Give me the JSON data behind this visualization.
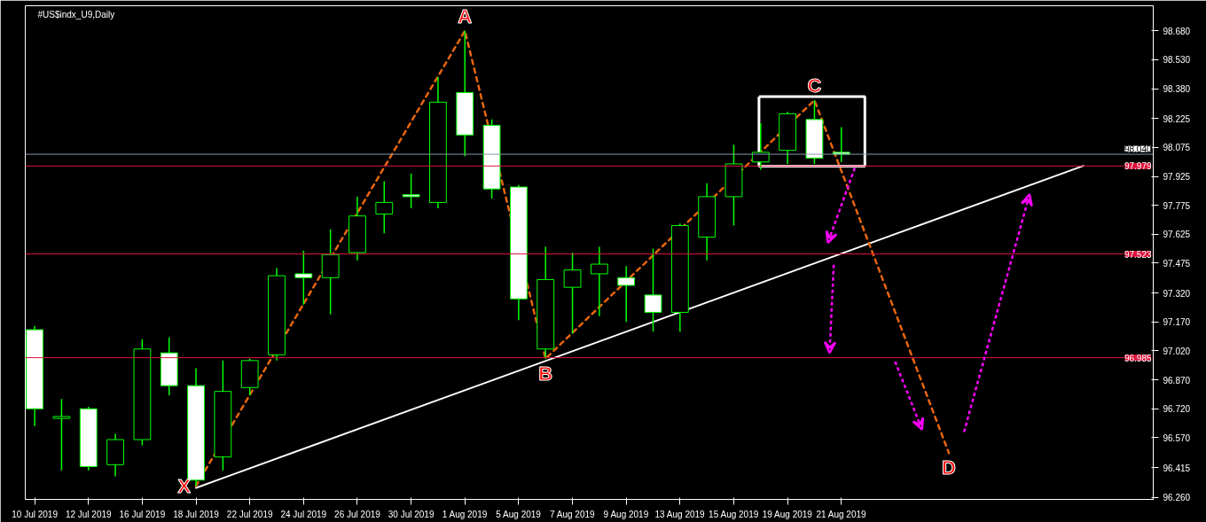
{
  "chart_data": {
    "type": "candlestick",
    "title": "#US$indx_U9,Daily",
    "categories": [
      "10 Jul 2019",
      null,
      "12 Jul 2019",
      null,
      "16 Jul 2019",
      null,
      "18 Jul 2019",
      null,
      "22 Jul 2019",
      null,
      "24 Jul 2019",
      null,
      "26 Jul 2019",
      null,
      "30 Jul 2019",
      null,
      "1 Aug 2019",
      null,
      "5 Aug 2019",
      null,
      "7 Aug 2019",
      null,
      "9 Aug 2019",
      null,
      "13 Aug 2019",
      null,
      "15 Aug 2019",
      null,
      "19 Aug 2019",
      null,
      "21 Aug 2019",
      null,
      null,
      null,
      null,
      null,
      null,
      null,
      null,
      null,
      null
    ],
    "ohlc": [
      [
        97.13,
        97.15,
        96.63,
        96.72
      ],
      [
        96.68,
        96.77,
        96.4,
        96.67
      ],
      [
        96.72,
        96.73,
        96.4,
        96.42
      ],
      [
        96.43,
        96.59,
        96.37,
        96.56
      ],
      [
        96.56,
        97.08,
        96.53,
        97.03
      ],
      [
        97.01,
        97.09,
        96.79,
        96.84
      ],
      [
        96.84,
        96.93,
        96.32,
        96.35
      ],
      [
        96.47,
        96.97,
        96.4,
        96.81
      ],
      [
        96.83,
        96.98,
        96.79,
        96.97
      ],
      [
        97.0,
        97.45,
        96.97,
        97.41
      ],
      [
        97.42,
        97.54,
        97.26,
        97.4
      ],
      [
        97.4,
        97.65,
        97.21,
        97.52
      ],
      [
        97.53,
        97.82,
        97.49,
        97.72
      ],
      [
        97.73,
        97.9,
        97.63,
        97.79
      ],
      [
        97.83,
        97.94,
        97.76,
        97.82
      ],
      [
        97.79,
        98.44,
        97.76,
        98.31
      ],
      [
        98.36,
        98.68,
        98.03,
        98.14
      ],
      [
        98.19,
        98.22,
        97.81,
        97.86
      ],
      [
        97.87,
        97.88,
        97.18,
        97.29
      ],
      [
        97.03,
        97.56,
        96.98,
        97.39
      ],
      [
        97.35,
        97.53,
        97.11,
        97.44
      ],
      [
        97.42,
        97.56,
        97.2,
        97.47
      ],
      [
        97.4,
        97.46,
        97.17,
        97.36
      ],
      [
        97.31,
        97.55,
        97.12,
        97.22
      ],
      [
        97.22,
        97.68,
        97.12,
        97.67
      ],
      [
        97.61,
        97.89,
        97.49,
        97.82
      ],
      [
        97.82,
        98.09,
        97.67,
        97.99
      ],
      [
        98.0,
        98.2,
        97.96,
        98.05
      ],
      [
        98.06,
        98.26,
        97.99,
        98.25
      ],
      [
        98.22,
        98.32,
        97.99,
        98.02
      ],
      [
        98.05,
        98.18,
        98.0,
        98.04
      ],
      null,
      null,
      null,
      null,
      null,
      null,
      null,
      null,
      null,
      null
    ],
    "color": "#00ff00",
    "colors": [
      "#ffffff",
      "#000000",
      "#ffffff",
      "#000000",
      "#000000",
      "#ffffff",
      "#ffffff",
      "#000000",
      "#000000",
      "#000000",
      "#ffffff",
      "#000000",
      "#000000",
      "#000000",
      "#ffffff",
      "#000000",
      "#ffffff",
      "#ffffff",
      "#ffffff",
      "#000000",
      "#000000",
      "#000000",
      "#ffffff",
      "#ffffff",
      "#000000",
      "#000000",
      "#000000",
      "#000000",
      "#000000",
      "#ffffff",
      "#ffffff",
      null,
      null,
      null,
      null,
      null,
      null,
      null,
      null,
      null,
      null
    ],
    "series": [
      {
        "type": "line",
        "color": "#e8650e",
        "line_style": "dashed",
        "values": [
          null,
          null,
          null,
          null,
          null,
          null,
          96.32,
          null,
          null,
          null,
          null,
          null,
          null,
          null,
          null,
          null,
          98.68,
          null,
          null,
          96.98,
          null,
          null,
          null,
          null,
          null,
          null,
          null,
          null,
          null,
          98.32,
          null,
          null,
          null,
          null,
          96.49,
          null,
          null,
          null,
          null,
          null,
          null
        ]
      },
      {
        "type": "line",
        "color": "#ffffff",
        "line_style": "solid",
        "values": [
          null,
          null,
          null,
          null,
          null,
          null,
          96.31,
          null,
          null,
          null,
          null,
          null,
          null,
          null,
          null,
          null,
          null,
          null,
          null,
          null,
          null,
          null,
          null,
          null,
          null,
          null,
          null,
          null,
          null,
          null,
          null,
          null,
          null,
          null,
          null,
          null,
          null,
          null,
          null,
          97.98,
          null
        ]
      }
    ],
    "ylim": [
      96.25,
      98.81
    ],
    "yticks": [
      {
        "value": 98.68,
        "label": "98.680"
      },
      {
        "value": 98.53,
        "label": "98.530"
      },
      {
        "value": 98.38,
        "label": "98.380"
      },
      {
        "value": 98.225,
        "label": "98.225"
      },
      {
        "value": 98.075,
        "label": "98.075"
      },
      {
        "value": 97.925,
        "label": "97.925"
      },
      {
        "value": 97.775,
        "label": "97.775"
      },
      {
        "value": 97.625,
        "label": "97.625"
      },
      {
        "value": 97.475,
        "label": "97.475"
      },
      {
        "value": 97.32,
        "label": "97.320"
      },
      {
        "value": 97.17,
        "label": "97.170"
      },
      {
        "value": 97.02,
        "label": "97.020"
      },
      {
        "value": 96.87,
        "label": "96.870"
      },
      {
        "value": 96.72,
        "label": "96.720"
      },
      {
        "value": 96.57,
        "label": "96.570"
      },
      {
        "value": 96.415,
        "label": "96.415"
      },
      {
        "value": 96.26,
        "label": "96.260"
      }
    ],
    "ref_lines": [
      {
        "axis": "y",
        "value": 98.04,
        "label": "98.040",
        "color": "#8899aa"
      },
      {
        "axis": "y",
        "value": 97.979,
        "label": "97.979",
        "color": "#dc143c"
      },
      {
        "axis": "y",
        "value": 97.523,
        "label": "97.523",
        "color": "#dc143c"
      },
      {
        "axis": "y",
        "value": 96.985,
        "label": "96.985",
        "color": "#dc143c"
      }
    ],
    "annotations": [
      "X",
      "A",
      "B",
      "C",
      "D"
    ]
  }
}
